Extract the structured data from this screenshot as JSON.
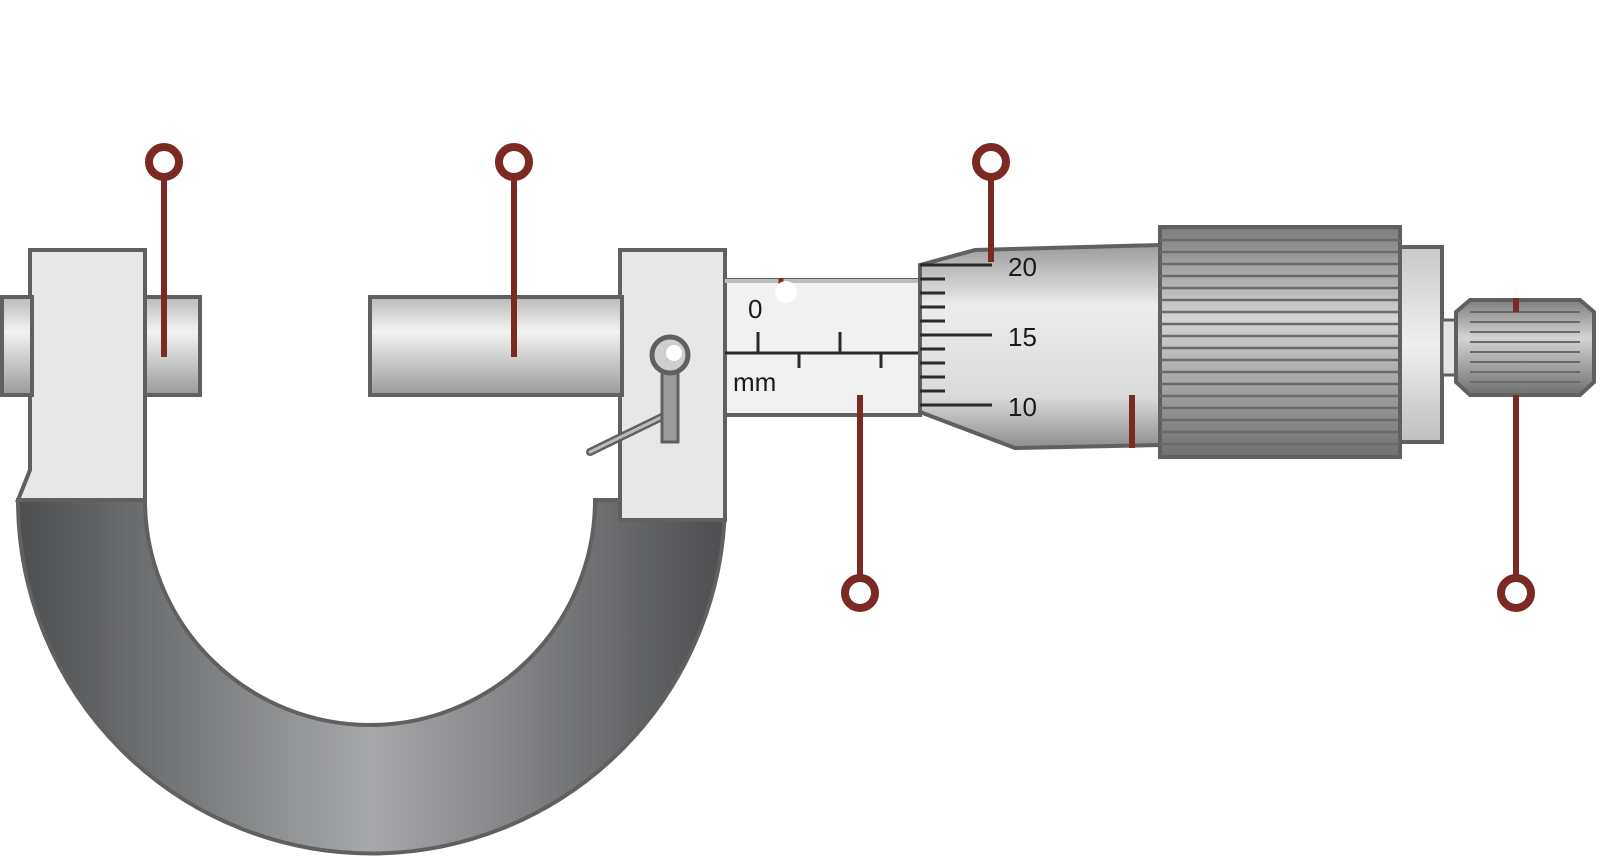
{
  "diagram": {
    "sleeve_scale": {
      "zero_label": "0",
      "unit_label": "mm"
    },
    "thimble_scale": {
      "labels": [
        "20",
        "15",
        "10"
      ]
    },
    "callouts": [
      {
        "part": "anvil",
        "label": ""
      },
      {
        "part": "spindle",
        "label": ""
      },
      {
        "part": "thimble-scale",
        "label": ""
      },
      {
        "part": "sleeve-scale",
        "label": ""
      },
      {
        "part": "thimble",
        "label": ""
      },
      {
        "part": "ratchet",
        "label": ""
      }
    ],
    "colors": {
      "callout": "#7a2a22",
      "frame_dark": "#5b5c5e",
      "frame_light": "#a3a4a6",
      "metal_light": "#e8e8e8",
      "metal_mid": "#bdbdbd",
      "outline": "#5f6061"
    }
  }
}
